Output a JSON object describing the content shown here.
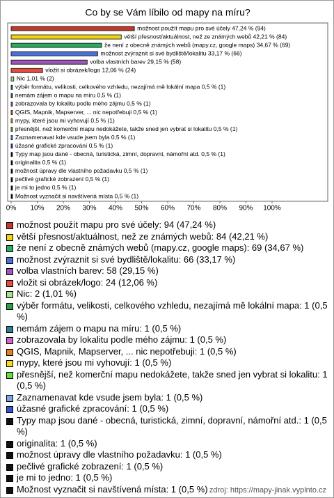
{
  "chart_data": {
    "type": "bar",
    "orientation": "horizontal",
    "title": "Co by se Vám líbilo od mapy na míru?",
    "categories": [
      "možnost použít mapu pro své účely",
      "větší přesnost/aktuálnost, než ze známých webů",
      "že není z obecně známých webů (mapy.cz, google maps)",
      "možnost zvýraznit si své bydliště/lokalitu",
      "volba vlastních barev",
      "vložit si obrázek/logo",
      "Nic",
      "výběr formátu, velikosti, celkového vzhledu, nezajímá mě lokální mapa",
      "nemám zájem o mapu na míru",
      "zobrazovala by lokalitu podle mého zájmu",
      "QGIS, Mapnik, Mapserver, ... nic nepotřebuji",
      "mypy, které jsou mi  vyhovují",
      "přesnější, než komerční mapu nedokážete, takže sned jen vybrat si lokalitu",
      "Zaznamenavat kde vsude jsem byla",
      "úžasné grafické zpracování",
      "Typy map jsou dané - obecná, turistická, zimní, dopravní, námořní atd.",
      "originalita",
      "možnost úpravy dle vlastního požadavku",
      "pečlivé grafické zobrazení",
      "je mi to jedno",
      "Možnost vyznačit si navštívená místa"
    ],
    "values": [
      47.24,
      42.21,
      34.67,
      33.17,
      29.15,
      12.06,
      1.01,
      0.5,
      0.5,
      0.5,
      0.5,
      0.5,
      0.5,
      0.5,
      0.5,
      0.5,
      0.5,
      0.5,
      0.5,
      0.5,
      0.5
    ],
    "value_labels": [
      "možnost použít mapu pro své účely 47,24 % (94)",
      "větší přesnost/aktuálnost, než ze známých webů 42,21 % (84)",
      "že není z obecně známých webů (mapy.cz, google maps) 34,67 % (69)",
      "možnost zvýraznit si své bydliště/lokalitu 33,17 % (66)",
      "volba vlastních barev 29,15 % (58)",
      "vložit si obrázek/logo 12,06 % (24)",
      "Nic 1,01 % (2)",
      "výběr formátu, velikosti, celkového vzhledu, nezajímá mě lokální mapa 0,5 % (1)",
      "nemám zájem o mapu na míru 0,5 % (1)",
      "zobrazovala by lokalitu podle mého zájmu 0,5 % (1)",
      "QGIS, Mapnik, Mapserver, ... nic nepotřebuji 0,5 % (1)",
      "mypy, které jsou mi  vyhovují 0,5 % (1)",
      "přesnější, než komerční mapu nedokážete, takže sned jen vybrat si lokalitu 0,5 % (1)",
      "Zaznamenavat kde vsude jsem byla 0,5 % (1)",
      "úžasné grafické zpracování 0,5 % (1)",
      "Typy map jsou dané - obecná, turistická, zimní, dopravní, námořní atd. 0,5 % (1)",
      "originalita 0,5 % (1)",
      "možnost úpravy dle vlastního požadavku 0,5 % (1)",
      "pečlivé grafické zobrazení 0,5 % (1)",
      "je mi to jedno 0,5 % (1)",
      "Možnost vyznačit si navštívená místa 0,5 % (1)"
    ],
    "legend_labels": [
      "možnost použít mapu pro své účely: 94 (47,24 %)",
      "větší přesnost/aktuálnost, než ze známých webů: 84 (42,21 %)",
      "že není z obecně známých webů (mapy.cz, google maps): 69 (34,67 %)",
      "možnost zvýraznit si své bydliště/lokalitu: 66 (33,17 %)",
      "volba vlastních barev: 58 (29,15 %)",
      "vložit si obrázek/logo: 24 (12,06 %)",
      "Nic: 2 (1,01 %)",
      "výběr formátu, velikosti, celkového vzhledu, nezajímá mě lokální mapa: 1 (0,5 %)",
      "nemám zájem o mapu na míru: 1 (0,5 %)",
      "zobrazovala by lokalitu podle mého zájmu: 1 (0,5 %)",
      "QGIS, Mapnik, Mapserver, ... nic nepotřebuji: 1 (0,5 %)",
      "mypy, které jsou mi  vyhovují: 1 (0,5 %)",
      "přesnější, než komerční mapu nedokážete, takže sned jen vybrat si lokalitu: 1 (0,5 %)",
      "Zaznamenavat kde vsude jsem byla: 1 (0,5 %)",
      "úžasné grafické zpracování: 1 (0,5 %)",
      "Typy map jsou dané - obecná, turistická, zimní, dopravní, námořní atd.: 1 (0,5 %)",
      "originalita: 1 (0,5 %)",
      "možnost úpravy dle vlastního požadavku: 1 (0,5 %)",
      "pečlivé grafické zobrazení: 1 (0,5 %)",
      "je mi to jedno: 1 (0,5 %)",
      "Možnost vyznačit si navštívená místa: 1 (0,5 %)"
    ],
    "colors": [
      "#c0392b",
      "#f1d60f",
      "#27ae60",
      "#4a72d6",
      "#9b59b6",
      "#e74c3c",
      "#a8e08c",
      "#2e9e4a",
      "#2e7f8f",
      "#cc66cc",
      "#e67e22",
      "#eedd22",
      "#66dd44",
      "#7fa6e0",
      "#3355cc",
      "#111111",
      "#111111",
      "#111111",
      "#111111",
      "#111111",
      "#111111"
    ],
    "xlim": [
      0,
      100
    ],
    "xticks": [
      {
        "value": 0,
        "label": "0%"
      },
      {
        "value": 10,
        "label": "10%"
      },
      {
        "value": 20,
        "label": "20%"
      },
      {
        "value": 30,
        "label": "30%"
      },
      {
        "value": 40,
        "label": "40%"
      },
      {
        "value": 50,
        "label": "50%"
      },
      {
        "value": 60,
        "label": "60%"
      },
      {
        "value": 70,
        "label": "70%"
      },
      {
        "value": 80,
        "label": "80%"
      },
      {
        "value": 90,
        "label": "90%"
      },
      {
        "value": 100,
        "label": "100%"
      }
    ],
    "source": "zdroj: https://mapy-jinak.vyplnto.cz"
  }
}
